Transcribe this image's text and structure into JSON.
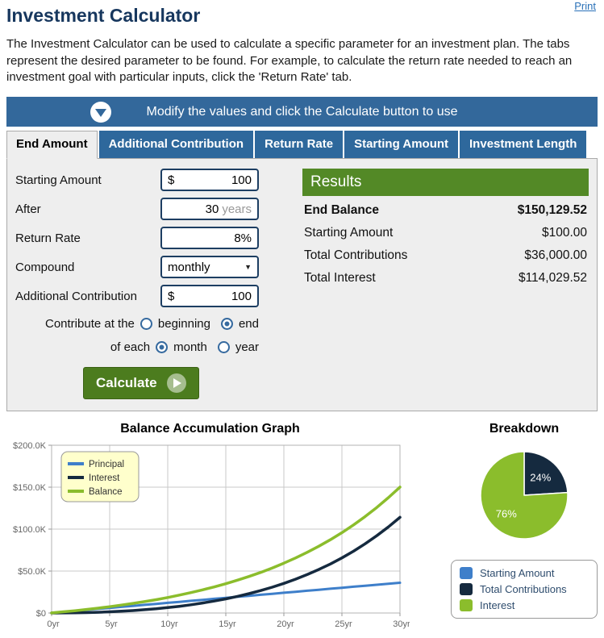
{
  "page": {
    "title": "Investment Calculator",
    "print_label": "Print",
    "description": "The Investment Calculator can be used to calculate a specific parameter for an investment plan. The tabs represent the desired parameter to be found. For example, to calculate the return rate needed to reach an investment goal with particular inputs, click the 'Return Rate' tab."
  },
  "info_bar": {
    "text": "Modify the values and click the Calculate button to use"
  },
  "tabs": [
    {
      "label": "End Amount",
      "active": true
    },
    {
      "label": "Additional Contribution",
      "active": false
    },
    {
      "label": "Return Rate",
      "active": false
    },
    {
      "label": "Starting Amount",
      "active": false
    },
    {
      "label": "Investment Length",
      "active": false
    }
  ],
  "form": {
    "rows": [
      {
        "label": "Starting Amount",
        "prefix": "$",
        "value": "100",
        "suffix": ""
      },
      {
        "label": "After",
        "prefix": "",
        "value": "30",
        "suffix": "years"
      },
      {
        "label": "Return Rate",
        "prefix": "",
        "value": "8%",
        "suffix": ""
      },
      {
        "label": "Compound",
        "type": "select",
        "value": "monthly"
      },
      {
        "label": "Additional Contribution",
        "prefix": "$",
        "value": "100",
        "suffix": ""
      }
    ],
    "contribute_row": {
      "text": "Contribute at the",
      "options": [
        {
          "label": "beginning",
          "checked": false
        },
        {
          "label": "end",
          "checked": true
        }
      ]
    },
    "ofeach_row": {
      "text": "of each",
      "options": [
        {
          "label": "month",
          "checked": true
        },
        {
          "label": "year",
          "checked": false
        }
      ]
    },
    "calculate_label": "Calculate"
  },
  "results": {
    "header": "Results",
    "rows": [
      {
        "label": "End Balance",
        "value": "$150,129.52",
        "bold": true
      },
      {
        "label": "Starting Amount",
        "value": "$100.00",
        "bold": false
      },
      {
        "label": "Total Contributions",
        "value": "$36,000.00",
        "bold": false
      },
      {
        "label": "Total Interest",
        "value": "$114,029.52",
        "bold": false
      }
    ]
  },
  "charts": {
    "line_title": "Balance Accumulation Graph",
    "pie_title": "Breakdown"
  },
  "chart_data": [
    {
      "type": "line",
      "title": "Balance Accumulation Graph",
      "xlabel": "",
      "ylabel": "",
      "x": [
        0,
        1,
        2,
        3,
        4,
        5,
        6,
        7,
        8,
        9,
        10,
        11,
        12,
        13,
        14,
        15,
        16,
        17,
        18,
        19,
        20,
        21,
        22,
        23,
        24,
        25,
        26,
        27,
        28,
        29,
        30
      ],
      "x_ticks": [
        0,
        5,
        10,
        15,
        20,
        25,
        30
      ],
      "x_tick_labels": [
        "0yr",
        "5yr",
        "10yr",
        "15yr",
        "20yr",
        "25yr",
        "30yr"
      ],
      "y_ticks_k": [
        0,
        50,
        100,
        150,
        200
      ],
      "y_tick_labels": [
        "$0",
        "$50.0K",
        "$100.0K",
        "$150.0K",
        "$200.0K"
      ],
      "ylim_k": [
        0,
        200
      ],
      "grid": true,
      "legend_position": "top-left",
      "series": [
        {
          "name": "Principal",
          "color": "#3e7fca",
          "values_k": [
            0.1,
            1.3,
            2.5,
            3.7,
            4.9,
            6.1,
            7.3,
            8.5,
            9.7,
            10.9,
            12.1,
            13.3,
            14.5,
            15.7,
            16.9,
            18.1,
            19.3,
            20.5,
            21.7,
            22.9,
            24.1,
            25.3,
            26.5,
            27.7,
            28.9,
            30.1,
            31.3,
            32.5,
            33.7,
            34.9,
            36.1
          ]
        },
        {
          "name": "Interest",
          "color": "#152a3f",
          "values_k": [
            0.0,
            0.1,
            0.2,
            0.5,
            0.9,
            1.4,
            2.1,
            2.9,
            3.9,
            5.0,
            6.4,
            8.0,
            9.8,
            11.9,
            14.2,
            16.8,
            19.8,
            23.1,
            26.7,
            30.8,
            35.3,
            40.3,
            45.8,
            51.8,
            58.4,
            65.7,
            73.7,
            82.5,
            92.1,
            102.6,
            114.0
          ]
        },
        {
          "name": "Balance",
          "color": "#8bbd2c",
          "values_k": [
            0.1,
            1.4,
            2.7,
            4.2,
            5.8,
            7.5,
            9.4,
            11.4,
            13.6,
            15.9,
            18.5,
            21.3,
            24.3,
            27.6,
            31.1,
            34.9,
            39.1,
            43.6,
            48.4,
            53.7,
            59.4,
            65.6,
            72.3,
            79.5,
            87.3,
            95.8,
            105.0,
            115.0,
            125.8,
            137.5,
            150.1
          ]
        }
      ]
    },
    {
      "type": "pie",
      "title": "Breakdown",
      "start_angle_deg": -90,
      "direction": "clockwise",
      "slices": [
        {
          "label": "Starting Amount",
          "pct": 0,
          "pct_label": "0%",
          "color": "#3e7fca"
        },
        {
          "label": "Total Contributions",
          "pct": 24,
          "pct_label": "24%",
          "color": "#152a3f"
        },
        {
          "label": "Interest",
          "pct": 76,
          "pct_label": "76%",
          "color": "#8bbd2c"
        }
      ]
    }
  ],
  "colors": {
    "title_navy": "#17375e",
    "link_blue": "#2a71b8",
    "bar_blue": "#33689b",
    "tab_blue": "#2e689c",
    "panel_gray": "#eeeeee",
    "input_border_navy": "#1d3e62",
    "radio_blue": "#366a9f",
    "button_green": "#4c7c1e",
    "results_header_green": "#538926",
    "chart_legend_bg": "#ffffcc",
    "grid_gray": "#c8c8c8"
  }
}
